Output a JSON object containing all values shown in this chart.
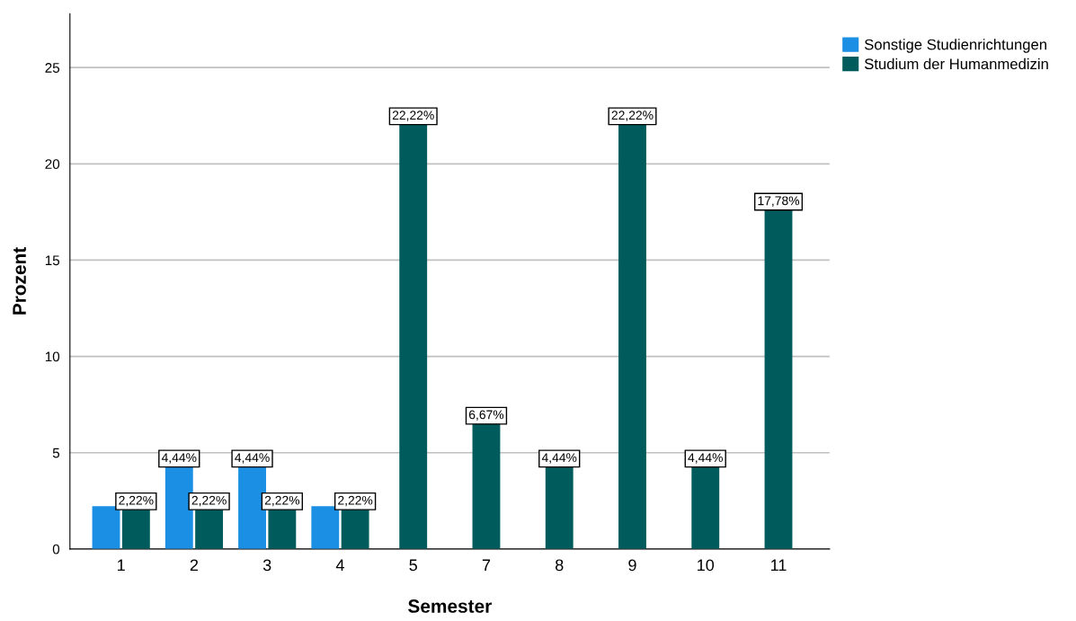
{
  "chart_data": {
    "type": "bar",
    "xlabel": "Semester",
    "ylabel": "Prozent",
    "categories": [
      "1",
      "2",
      "3",
      "4",
      "5",
      "7",
      "8",
      "9",
      "10",
      "11"
    ],
    "series": [
      {
        "name": "Sonstige Studienrichtungen",
        "color": "#1a8fe3",
        "values": [
          2.22,
          4.44,
          4.44,
          2.22,
          null,
          null,
          null,
          null,
          null,
          null
        ],
        "value_labels": [
          null,
          "4,44%",
          "4,44%",
          null,
          null,
          null,
          null,
          null,
          null,
          null
        ]
      },
      {
        "name": "Studium der Humanmedizin",
        "color": "#005c5c",
        "values": [
          2.22,
          2.22,
          2.22,
          2.22,
          22.22,
          6.67,
          4.44,
          22.22,
          4.44,
          17.78
        ],
        "value_labels": [
          "2,22%",
          "2,22%",
          "2,22%",
          "2,22%",
          "22,22%",
          "6,67%",
          "4,44%",
          "22,22%",
          "4,44%",
          "17,78%"
        ]
      }
    ],
    "ylim": [
      0,
      27.8
    ],
    "yticks": [
      0,
      5,
      10,
      15,
      20,
      25
    ],
    "grid": "y",
    "legend": "top right"
  }
}
